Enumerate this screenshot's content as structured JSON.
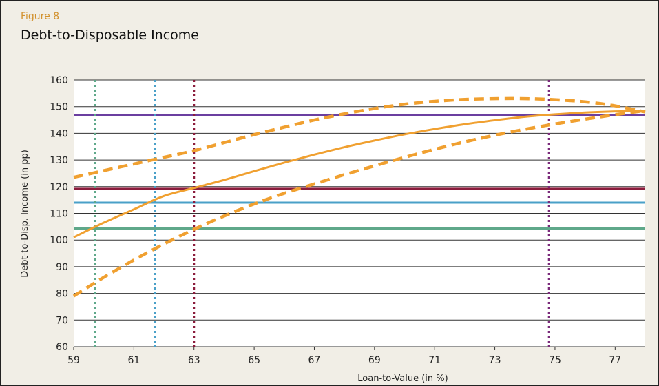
{
  "figure_label": "Figure 8",
  "title": "Debt-to-Disposable Income",
  "chart_data": {
    "type": "line",
    "title": "Debt-to-Disposable Income",
    "xlabel": "Loan-to-Value (in %)",
    "ylabel": "Debt-to-Disp. Income (in pp)",
    "xlim": [
      59,
      78
    ],
    "ylim": [
      60,
      160
    ],
    "x_ticks": [
      59,
      61,
      63,
      65,
      67,
      69,
      71,
      73,
      75,
      77
    ],
    "y_ticks": [
      60,
      70,
      80,
      90,
      100,
      110,
      120,
      130,
      140,
      150,
      160
    ],
    "grid": "horizontal",
    "legend": "none",
    "series": [
      {
        "style": "solid",
        "color": "#f0a030",
        "x": [
          59,
          60,
          61,
          62,
          63,
          64,
          65,
          66,
          67,
          68,
          69,
          70,
          71,
          72,
          73,
          74,
          75,
          76,
          77,
          78
        ],
        "y": [
          101,
          106.5,
          111.5,
          116.5,
          119.5,
          122.5,
          125.8,
          129,
          132,
          134.8,
          137.3,
          139.6,
          141.6,
          143.4,
          144.9,
          146.2,
          147.1,
          147.8,
          148.2,
          148.4
        ]
      },
      {
        "style": "dashed",
        "color": "#f0a030",
        "x": [
          59,
          60,
          61,
          62,
          63,
          64,
          65,
          66,
          67,
          68,
          69,
          70,
          71,
          72,
          73,
          74,
          75,
          76,
          77,
          78
        ],
        "y": [
          123.5,
          126,
          128.5,
          131,
          133.5,
          136.5,
          139.5,
          142.3,
          145,
          147.3,
          149.3,
          150.9,
          152,
          152.7,
          153,
          153,
          152.6,
          151.8,
          150.3,
          148
        ]
      },
      {
        "style": "dashed",
        "color": "#f0a030",
        "x": [
          59,
          60,
          61,
          62,
          63,
          64,
          65,
          66,
          67,
          68,
          69,
          70,
          71,
          72,
          73,
          74,
          75,
          76,
          77,
          78
        ],
        "y": [
          79,
          86,
          92.5,
          98.5,
          104,
          109,
          113.5,
          117.5,
          121,
          124.5,
          127.8,
          131,
          134,
          136.8,
          139.3,
          141.5,
          143.5,
          145.3,
          147,
          148.5
        ]
      }
    ],
    "horizontal_lines": [
      {
        "y": 146.7,
        "color": "#6b3fa0"
      },
      {
        "y": 119.2,
        "color": "#8b1c3c"
      },
      {
        "y": 114,
        "color": "#4aa0c8"
      },
      {
        "y": 104.3,
        "color": "#5fa88a"
      }
    ],
    "vertical_lines": [
      {
        "x": 59.7,
        "color": "#5fa88a"
      },
      {
        "x": 61.7,
        "color": "#4aa0c8"
      },
      {
        "x": 63,
        "color": "#8b1c3c"
      },
      {
        "x": 74.8,
        "color": "#7a2a7a"
      }
    ],
    "colors": {
      "background": "#f1eee6",
      "plot_background": "#ffffff",
      "gridline": "#333333"
    }
  }
}
